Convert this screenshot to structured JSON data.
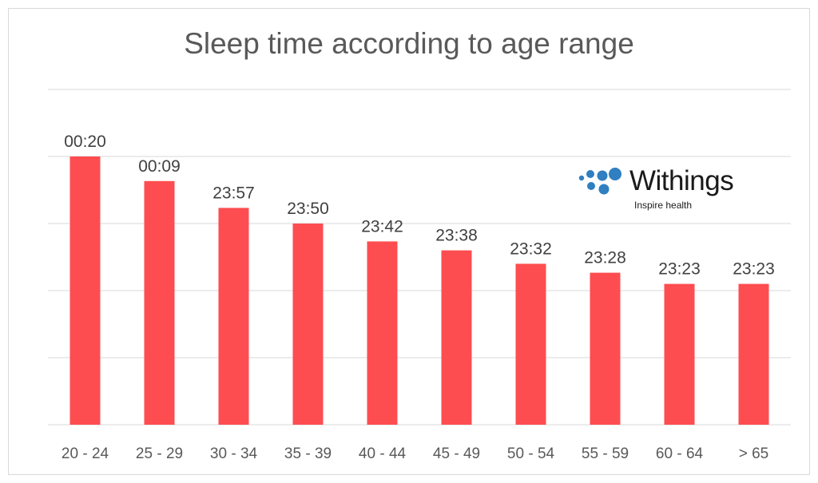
{
  "colors": {
    "bar": "#fe4d50",
    "grid": "#d9d9d9",
    "logo_dots": "#2f7fc1"
  },
  "logo": {
    "name": "Withings",
    "tagline": "Inspire health",
    "icon": "dots-logo-icon"
  },
  "chart_data": {
    "type": "bar",
    "title": "Sleep time according to age range",
    "xlabel": "",
    "ylabel": "",
    "grid": true,
    "legend": "none",
    "categories": [
      "20 - 24",
      "25 - 29",
      "30 - 34",
      "35 - 39",
      "40 - 44",
      "45 - 49",
      "50 - 54",
      "55 - 59",
      "60 - 64",
      "> 65"
    ],
    "labels": [
      "00:20",
      "00:09",
      "23:57",
      "23:50",
      "23:42",
      "23:38",
      "23:32",
      "23:28",
      "23:23",
      "23:23"
    ],
    "values": [
      1460,
      1449,
      1437,
      1430,
      1422,
      1418,
      1412,
      1408,
      1403,
      1403
    ],
    "ylim": [
      1340,
      1490
    ]
  }
}
